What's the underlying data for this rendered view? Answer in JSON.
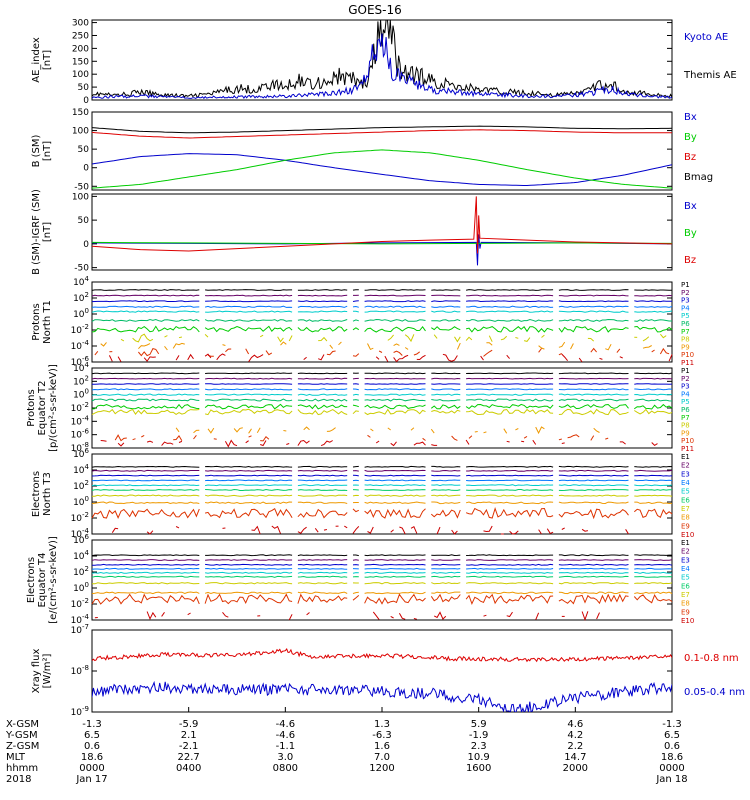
{
  "title": "GOES-16",
  "colors": {
    "black": "#000000",
    "blue": "#0000cc",
    "green": "#00cc00",
    "red": "#dd0000",
    "P": [
      "#000000",
      "#660066",
      "#0000cc",
      "#0077ff",
      "#00cccc",
      "#00bb66",
      "#00cc00",
      "#cccc00",
      "#ee9900",
      "#dd3300",
      "#cc0000"
    ],
    "E": [
      "#000000",
      "#660066",
      "#0000cc",
      "#0077ff",
      "#00cccc",
      "#00cc66",
      "#cccc00",
      "#ee9900",
      "#dd3300",
      "#cc0000"
    ]
  },
  "x_axis": {
    "hours": [
      0,
      4,
      8,
      12,
      16,
      20,
      24
    ],
    "rows": [
      {
        "label": "X-GSM",
        "values": [
          "-1.3",
          "-5.9",
          "-4.6",
          "1.3",
          "5.9",
          "4.6",
          "-1.3"
        ]
      },
      {
        "label": "Y-GSM",
        "values": [
          "6.5",
          "2.1",
          "-4.6",
          "-6.3",
          "-1.9",
          "4.2",
          "6.5"
        ]
      },
      {
        "label": "Z-GSM",
        "values": [
          "0.6",
          "-2.1",
          "-1.1",
          "1.6",
          "2.3",
          "2.2",
          "0.6"
        ]
      },
      {
        "label": "MLT",
        "values": [
          "18.6",
          "22.7",
          "3.0",
          "7.0",
          "10.9",
          "14.7",
          "18.6"
        ]
      },
      {
        "label": "hhmm",
        "values": [
          "0000",
          "0400",
          "0800",
          "1200",
          "1600",
          "2000",
          "0000"
        ]
      },
      {
        "label": "2018",
        "values": [
          "Jan 17",
          "",
          "",
          "",
          "",
          "",
          "Jan 18"
        ]
      }
    ]
  },
  "chart_data": [
    {
      "type": "line",
      "ylabel": [
        "AE_index",
        "[nT]"
      ],
      "yticks": [
        "0",
        "50",
        "100",
        "150",
        "200",
        "250",
        "300"
      ],
      "ylim": [
        0,
        310
      ],
      "legend": [
        "Kyoto AE",
        "Themis AE"
      ],
      "series": [
        {
          "name": "Themis AE",
          "x": [
            0,
            1,
            2,
            3,
            4,
            5,
            6,
            6.8,
            7.4,
            8,
            8.6,
            9,
            9.6,
            10.2,
            10.8,
            11.4,
            11.9,
            12.3,
            12.6,
            13,
            13.6,
            14.2,
            15,
            15.8,
            16.6,
            17.4,
            18.4,
            19.2,
            20,
            20.6,
            21,
            21.4,
            21.8,
            22.4,
            23.2,
            24
          ],
          "values": [
            25,
            18,
            30,
            20,
            15,
            25,
            45,
            40,
            60,
            50,
            80,
            65,
            70,
            90,
            80,
            60,
            250,
            290,
            150,
            100,
            90,
            70,
            55,
            45,
            35,
            30,
            25,
            20,
            25,
            40,
            55,
            65,
            45,
            30,
            20,
            15
          ]
        },
        {
          "name": "Kyoto AE",
          "x": [
            0,
            2,
            4,
            6,
            8,
            9,
            10,
            10.6,
            11.2,
            11.7,
            12,
            12.2,
            12.4,
            12.8,
            13.4,
            14,
            15,
            16,
            17,
            18,
            19,
            20,
            20.8,
            21.2,
            21.6,
            22,
            23,
            24
          ],
          "values": [
            10,
            15,
            10,
            12,
            15,
            20,
            25,
            35,
            60,
            190,
            240,
            200,
            120,
            80,
            60,
            40,
            30,
            25,
            20,
            15,
            15,
            20,
            30,
            45,
            40,
            25,
            15,
            10
          ]
        }
      ]
    },
    {
      "type": "line",
      "ylabel": [
        "B (SM)",
        "[nT]"
      ],
      "yticks": [
        "-50",
        "0",
        "50",
        "100",
        "150"
      ],
      "ylim": [
        -60,
        150
      ],
      "legend": [
        "Bx",
        "By",
        "Bz",
        "Bmag"
      ],
      "series": [
        {
          "name": "Bx",
          "x": [
            0,
            2,
            4,
            6,
            8,
            10,
            12,
            14,
            16,
            18,
            20,
            22,
            24
          ],
          "values": [
            10,
            30,
            38,
            35,
            20,
            0,
            -18,
            -35,
            -45,
            -48,
            -40,
            -20,
            8
          ]
        },
        {
          "name": "By",
          "x": [
            0,
            2,
            4,
            6,
            8,
            10,
            12,
            14,
            16,
            18,
            20,
            22,
            24
          ],
          "values": [
            -55,
            -45,
            -25,
            -5,
            20,
            40,
            48,
            40,
            20,
            -5,
            -28,
            -45,
            -55
          ]
        },
        {
          "name": "Bz",
          "x": [
            0,
            2,
            4,
            6,
            8,
            10,
            12,
            14,
            16,
            18,
            20,
            22,
            24
          ],
          "values": [
            95,
            85,
            80,
            84,
            88,
            92,
            96,
            100,
            102,
            100,
            96,
            94,
            94
          ]
        },
        {
          "name": "Bmag",
          "x": [
            0,
            2,
            4,
            6,
            8,
            10,
            12,
            14,
            16,
            18,
            20,
            22,
            24
          ],
          "values": [
            108,
            98,
            94,
            96,
            100,
            104,
            108,
            110,
            112,
            110,
            106,
            105,
            106
          ]
        }
      ]
    },
    {
      "type": "line",
      "ylabel": [
        "B (SM)-IGRF (SM)",
        "[nT]"
      ],
      "yticks": [
        "-50",
        "0",
        "50",
        "100"
      ],
      "ylim": [
        -55,
        105
      ],
      "legend": [
        "Bx",
        "By",
        "Bz"
      ],
      "series": [
        {
          "name": "Bx",
          "x": [
            0,
            4,
            8,
            12,
            15.9,
            15.95,
            16,
            16.05,
            16.1,
            20,
            24
          ],
          "values": [
            2,
            1,
            0,
            2,
            3,
            -45,
            20,
            -10,
            3,
            2,
            0
          ]
        },
        {
          "name": "By",
          "x": [
            0,
            4,
            8,
            12,
            16,
            20,
            24
          ],
          "values": [
            3,
            2,
            1,
            0,
            1,
            2,
            1
          ]
        },
        {
          "name": "Bz",
          "x": [
            0,
            2,
            4,
            6,
            8,
            10,
            12,
            14,
            15.8,
            15.9,
            15.95,
            16,
            16.05,
            18,
            20,
            22,
            24
          ],
          "values": [
            -5,
            -12,
            -15,
            -10,
            -5,
            0,
            5,
            8,
            10,
            100,
            -20,
            60,
            12,
            8,
            4,
            2,
            0
          ]
        }
      ]
    },
    {
      "type": "line",
      "log": true,
      "ylabel": [
        "Protons",
        "North T1"
      ],
      "yticks": [
        "10^4",
        "10^2",
        "10^0",
        "10^-2",
        "10^-4",
        "10^-6"
      ],
      "ylim_exp": [
        -6,
        4
      ],
      "legend": [
        "P1",
        "P2",
        "P3",
        "P4",
        "P5",
        "P6",
        "P7",
        "P8",
        "P9",
        "P10",
        "P11"
      ],
      "levels_exp": [
        3.0,
        2.3,
        1.6,
        0.9,
        0.3,
        -0.8,
        -1.9,
        -3.0,
        -4.0,
        -4.8,
        -5.5
      ],
      "noise": [
        0.05,
        0.05,
        0.05,
        0.08,
        0.08,
        0.12,
        0.35,
        0.5,
        0.5,
        0.5,
        0.5
      ],
      "dropouts_h": [
        4.6,
        8.4,
        10.7,
        11.2,
        13.9,
        15.4,
        19.2,
        22.3
      ],
      "continuous": 7
    },
    {
      "type": "line",
      "log": true,
      "ylabel": [
        "Protons",
        "Equator T2",
        "[p/(cm²-s-sr-keV)]"
      ],
      "yticks": [
        "10^4",
        "10^2",
        "10^0",
        "10^-2",
        "10^-4",
        "10^-6",
        "10^-8"
      ],
      "ylim_exp": [
        -8,
        4
      ],
      "legend": [
        "P1",
        "P2",
        "P3",
        "P4",
        "P5",
        "P6",
        "P7",
        "P8",
        "P9",
        "P10",
        "P11"
      ],
      "levels_exp": [
        3.2,
        2.4,
        1.6,
        0.8,
        0.0,
        -0.8,
        -1.8,
        -2.6,
        -5.3,
        -6.5,
        -7.3
      ],
      "noise": [
        0.05,
        0.05,
        0.05,
        0.08,
        0.1,
        0.15,
        0.35,
        0.4,
        0.5,
        0.5,
        0.5
      ],
      "dropouts_h": [
        4.6,
        8.4,
        10.7,
        11.2,
        13.9,
        15.4,
        19.2,
        22.3
      ],
      "continuous": 8
    },
    {
      "type": "line",
      "log": true,
      "ylabel": [
        "Electrons",
        "North T3"
      ],
      "yticks": [
        "10^6",
        "10^4",
        "10^2",
        "10^0",
        "10^-2",
        "10^-4"
      ],
      "ylim_exp": [
        -4,
        6
      ],
      "legend": [
        "E1",
        "E2",
        "E3",
        "E4",
        "E5",
        "E6",
        "E7",
        "E8",
        "E9",
        "E10"
      ],
      "levels_exp": [
        4.4,
        3.9,
        3.3,
        2.7,
        2.1,
        1.5,
        0.8,
        -0.1,
        -1.4,
        -3.5
      ],
      "noise": [
        0.05,
        0.05,
        0.05,
        0.05,
        0.06,
        0.06,
        0.08,
        0.1,
        0.6,
        0.6
      ],
      "dropouts_h": [
        4.6,
        8.4,
        10.7,
        11.2,
        13.9,
        15.4,
        19.2,
        22.3
      ],
      "continuous": 9
    },
    {
      "type": "line",
      "log": true,
      "ylabel": [
        "Electrons",
        "Equator T4",
        "[e/(cm²-s-sr-keV)]"
      ],
      "yticks": [
        "10^6",
        "10^4",
        "10^2",
        "10^0",
        "10^-2",
        "10^-4"
      ],
      "ylim_exp": [
        -4,
        6
      ],
      "legend": [
        "E1",
        "E2",
        "E3",
        "E4",
        "E5",
        "E6",
        "E7",
        "E8",
        "E9",
        "E10"
      ],
      "levels_exp": [
        4.1,
        3.5,
        2.9,
        2.4,
        1.9,
        1.4,
        0.6,
        -0.6,
        -1.4,
        -3.5
      ],
      "noise": [
        0.05,
        0.05,
        0.05,
        0.05,
        0.06,
        0.06,
        0.08,
        0.1,
        0.6,
        0.6
      ],
      "dropouts_h": [
        4.6,
        8.4,
        10.7,
        11.2,
        13.9,
        15.4,
        19.2,
        22.3
      ],
      "continuous": 9
    },
    {
      "type": "line",
      "log": true,
      "ylabel": [
        "Xray flux",
        "[W/m²]"
      ],
      "yticks": [
        "10^-7",
        "10^-8",
        "10^-9"
      ],
      "ylim_exp": [
        -9,
        -7
      ],
      "legend": [
        "0.1-0.8 nm",
        "0.05-0.4 nm"
      ],
      "series": [
        {
          "name": "0.1-0.8 nm",
          "x": [
            0,
            3,
            6,
            8,
            9,
            12,
            15,
            18,
            21,
            24
          ],
          "values_exp": [
            -7.7,
            -7.6,
            -7.62,
            -7.5,
            -7.65,
            -7.62,
            -7.7,
            -7.72,
            -7.7,
            -7.65
          ]
        },
        {
          "name": "0.05-0.4 nm",
          "x": [
            0,
            3,
            6,
            9,
            12,
            14,
            16,
            17.3,
            18,
            19.5,
            21,
            22,
            24
          ],
          "values_exp": [
            -8.5,
            -8.4,
            -8.45,
            -8.45,
            -8.5,
            -8.55,
            -8.7,
            -8.95,
            -8.9,
            -8.7,
            -8.6,
            -8.5,
            -8.4
          ]
        }
      ]
    }
  ]
}
